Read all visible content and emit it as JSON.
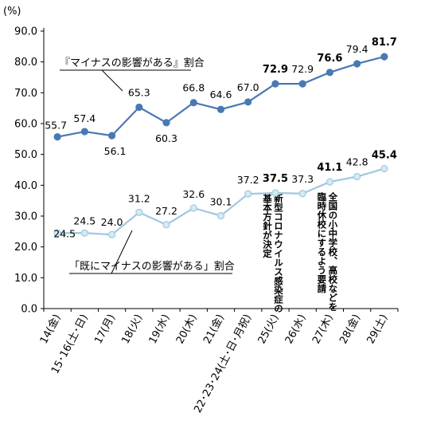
{
  "chart_data": {
    "type": "line",
    "unit_label": "(%)",
    "ylim": [
      0,
      90
    ],
    "ytick_labels": [
      "0.0",
      "10.0",
      "20.0",
      "30.0",
      "40.0",
      "50.0",
      "60.0",
      "70.0",
      "80.0",
      "90.0"
    ],
    "categories": [
      "14(金)",
      "15･16(土･日)",
      "17(月)",
      "18(火)",
      "19(水)",
      "20(木)",
      "21(金)",
      "22･23･24(土･日･月祝)",
      "25(火)",
      "26(水)",
      "27(木)",
      "28(金)",
      "29(土)"
    ],
    "series": [
      {
        "name": "『マイナスの影響がある』割合",
        "color": "#4a78b4",
        "marker_fill": "#4a78b4",
        "values": [
          55.7,
          57.4,
          56.1,
          65.3,
          60.3,
          66.8,
          64.6,
          67.0,
          72.9,
          72.9,
          76.6,
          79.4,
          81.7
        ],
        "labels": [
          "55.7",
          "57.4",
          "56.1",
          "65.3",
          "60.3",
          "66.8",
          "64.6",
          "67.0",
          "72.9",
          "72.9",
          "76.6",
          "79.4",
          "81.7"
        ],
        "bold": [
          false,
          false,
          false,
          false,
          false,
          false,
          false,
          false,
          true,
          false,
          true,
          false,
          true
        ]
      },
      {
        "name": "「既にマイナスの影響がある」割合",
        "color": "#9fc8e0",
        "marker_fill": "#d4eaf4",
        "values": [
          24.5,
          24.5,
          24.0,
          31.2,
          27.2,
          32.6,
          30.1,
          37.2,
          37.5,
          37.3,
          41.1,
          42.8,
          45.4
        ],
        "labels": [
          "24.5",
          "24.5",
          "24.0",
          "31.2",
          "27.2",
          "32.6",
          "30.1",
          "37.2",
          "37.5",
          "37.3",
          "41.1",
          "42.8",
          "45.4"
        ],
        "bold": [
          false,
          false,
          false,
          false,
          false,
          false,
          false,
          false,
          true,
          false,
          true,
          false,
          true
        ]
      }
    ],
    "annotations": [
      {
        "category_index": 8,
        "lines": [
          "新型コロナウイルス感染症の",
          "基本方針が決定"
        ]
      },
      {
        "category_index": 10,
        "lines": [
          "全国の小中学校、高校などを",
          "臨時休校にするよう要請"
        ]
      }
    ],
    "grid": false,
    "legend": "inline-callouts"
  }
}
